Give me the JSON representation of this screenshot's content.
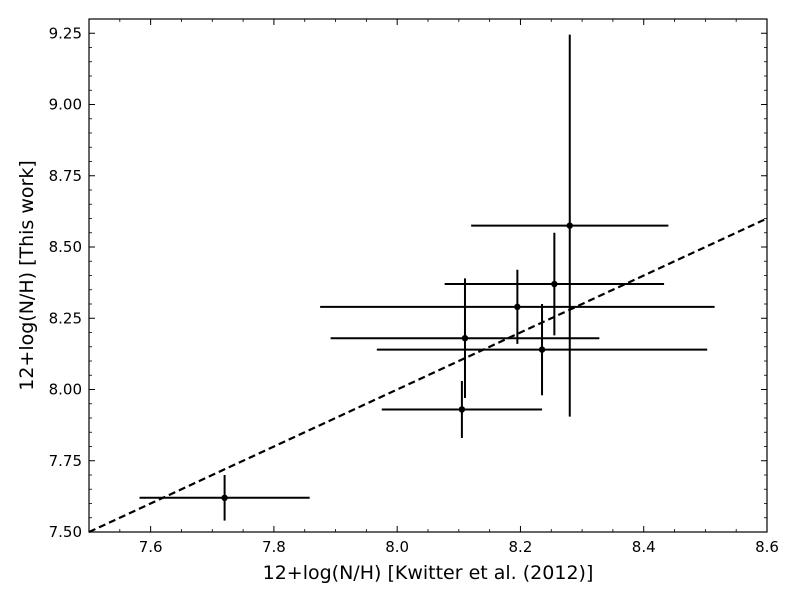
{
  "chart_data": {
    "type": "scatter",
    "xlabel": "12+log(N/H) [Kwitter et al. (2012)]",
    "ylabel": "12+log(N/H) [This work]",
    "xlim": [
      7.5,
      8.6
    ],
    "ylim": [
      7.5,
      9.3
    ],
    "xticks": [
      7.6,
      7.8,
      8.0,
      8.2,
      8.4,
      8.6
    ],
    "xtick_labels": [
      "7.6",
      "7.8",
      "8.0",
      "8.2",
      "8.4",
      "8.6"
    ],
    "yticks": [
      7.5,
      7.75,
      8.0,
      8.25,
      8.5,
      8.75,
      9.0,
      9.25
    ],
    "ytick_labels": [
      "7.50",
      "7.75",
      "8.00",
      "8.25",
      "8.50",
      "8.75",
      "9.00",
      "9.25"
    ],
    "grid": false,
    "reference_line": {
      "style": "dashed",
      "points": [
        [
          7.5,
          7.5
        ],
        [
          8.6,
          8.6
        ]
      ]
    },
    "color": "#000000",
    "points": [
      {
        "x": 7.72,
        "y": 7.62,
        "xerr": [
          0.138,
          0.138
        ],
        "yerr": [
          0.08,
          0.08
        ]
      },
      {
        "x": 8.105,
        "y": 7.93,
        "xerr": [
          0.13,
          0.13
        ],
        "yerr": [
          0.1,
          0.1
        ]
      },
      {
        "x": 8.11,
        "y": 8.18,
        "xerr": [
          0.218,
          0.218
        ],
        "yerr": [
          0.21,
          0.21
        ]
      },
      {
        "x": 8.195,
        "y": 8.29,
        "xerr": [
          0.32,
          0.32
        ],
        "yerr": [
          0.13,
          0.13
        ]
      },
      {
        "x": 8.235,
        "y": 8.14,
        "xerr": [
          0.268,
          0.268
        ],
        "yerr": [
          0.16,
          0.16
        ]
      },
      {
        "x": 8.255,
        "y": 8.37,
        "xerr": [
          0.178,
          0.178
        ],
        "yerr": [
          0.18,
          0.18
        ]
      },
      {
        "x": 8.28,
        "y": 8.575,
        "xerr": [
          0.16,
          0.16
        ],
        "yerr": [
          0.67,
          0.67
        ]
      }
    ]
  }
}
